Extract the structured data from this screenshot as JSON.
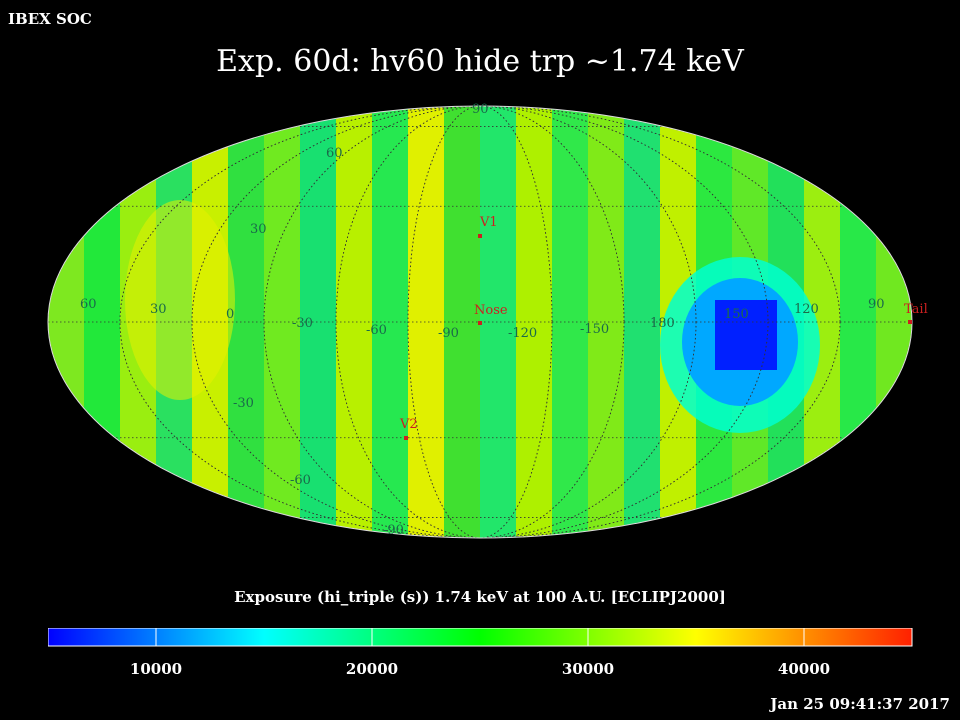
{
  "header": {
    "corner_label": "IBEX SOC",
    "title": "Exp.   60d: hv60 hide trp ~1.74 keV"
  },
  "map": {
    "projection": "mollweide",
    "longitude_labels": [
      "60",
      "30",
      "0",
      "-30",
      "-60",
      "-90",
      "-120",
      "-150",
      "180",
      "150",
      "120",
      "90"
    ],
    "latitude_labels": [
      "90",
      "60",
      "30",
      "-30",
      "-60",
      "-90"
    ],
    "markers": [
      {
        "label": "V1",
        "color": "#cc2020"
      },
      {
        "label": "Nose",
        "color": "#cc2020"
      },
      {
        "label": "V2",
        "color": "#cc2020"
      },
      {
        "label": "Tail",
        "color": "#cc2020"
      }
    ],
    "low_exposure_region_color": "#0020ff"
  },
  "colorbar": {
    "caption": "Exposure (hi_triple (s))  1.74 keV at 100 A.U. [ECLIPJ2000]",
    "ticks": [
      "10000",
      "20000",
      "30000",
      "40000"
    ],
    "range": [
      5000,
      45000
    ],
    "colors": [
      "#0000ff",
      "#00ffff",
      "#00ff00",
      "#ffff00",
      "#ff2000"
    ]
  },
  "footer": {
    "timestamp": "Jan 25 09:41:37 2017"
  }
}
